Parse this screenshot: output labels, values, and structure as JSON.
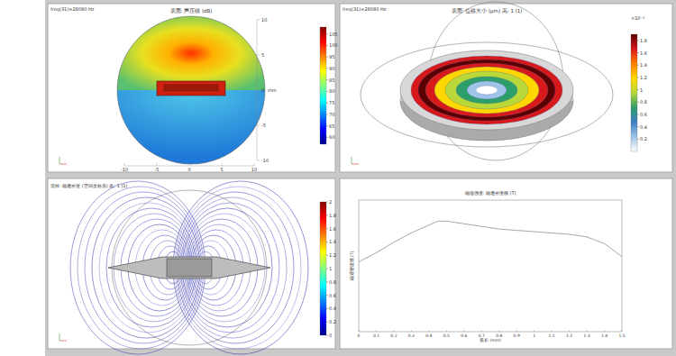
{
  "chart_data": [
    {
      "type": "surface",
      "label": "freq(31)=28080 Hz",
      "title": "表面: 声压级 (dB)",
      "colorbar_range": [
        57,
        108
      ],
      "colorbar_ticks": [
        60,
        65,
        70,
        75,
        80,
        85,
        90,
        95,
        100,
        105
      ],
      "xlim": [
        -10,
        10
      ],
      "xticks": [
        -10,
        -5,
        0,
        5,
        10
      ],
      "ylim": [
        -10,
        10
      ],
      "yticks": [
        -10,
        -5,
        0,
        5,
        10
      ],
      "unit": "mm"
    },
    {
      "type": "surface",
      "label": "freq(31)=28080 Hz",
      "title": "表面: 位移大小 (μm)  高: 1 (1)",
      "colorbar_range": [
        0,
        1.9
      ],
      "colorbar_ticks": [
        0.2,
        0.4,
        0.6,
        0.8,
        1,
        1.2,
        1.4,
        1.6,
        1.8
      ],
      "colorbar_multiplier": "×10⁻³"
    },
    {
      "type": "streamline",
      "title": "流线: 磁通密度 (空间坐标系)  高: 1 (1)",
      "colorbar_range": [
        0,
        2
      ],
      "colorbar_ticks": [
        0,
        0.2,
        0.4,
        0.6,
        0.8,
        1,
        1.2,
        1.4,
        1.6,
        1.8,
        2
      ]
    },
    {
      "type": "line",
      "title": "磁场强度: 磁通密度模 (T)",
      "x_label": "弧长 (mm)",
      "y_label": "磁通密度模 (T)",
      "x": [
        0,
        0.1,
        0.2,
        0.3,
        0.4,
        0.45,
        0.5,
        0.6,
        0.7,
        0.8,
        0.9,
        1.0,
        1.1,
        1.2,
        1.3,
        1.4,
        1.5
      ],
      "values": [
        0.53,
        0.6,
        0.68,
        0.75,
        0.81,
        0.84,
        0.84,
        0.82,
        0.8,
        0.78,
        0.77,
        0.76,
        0.75,
        0.74,
        0.72,
        0.67,
        0.57
      ],
      "color": "#9a9aa8",
      "xlim": [
        0,
        1.5
      ],
      "xticks": [
        0,
        0.1,
        0.2,
        0.3,
        0.4,
        0.5,
        0.6,
        0.7,
        0.8,
        0.9,
        1,
        1.1,
        1.2,
        1.3,
        1.4,
        1.5
      ],
      "ylim": [
        0,
        1
      ],
      "tick_labels": "x"
    }
  ]
}
